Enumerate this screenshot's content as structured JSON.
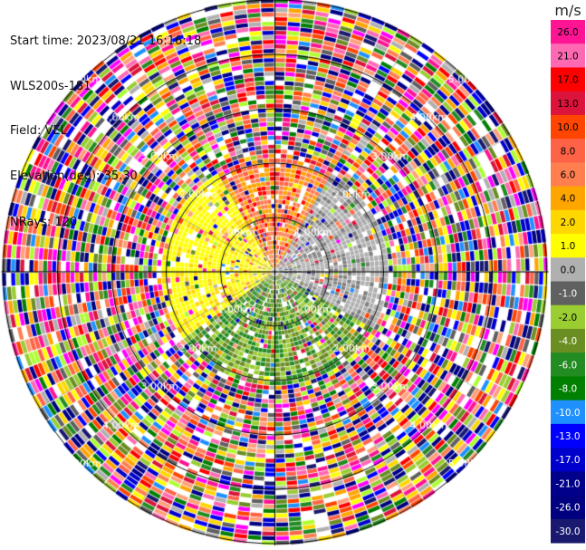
{
  "header": {
    "start_time": "Start time: 2023/08/21 16:16:18",
    "instrument": "WLS200s-181",
    "field": "Field: VEL",
    "elevation": "Elevation(deg): 35.30",
    "nrays": "NRays: 120"
  },
  "colorbar": {
    "unit": "m/s",
    "ticks": [
      "26.0",
      "21.0",
      "17.0",
      "13.0",
      "10.0",
      "8.0",
      "6.0",
      "4.0",
      "2.0",
      "1.0",
      "0.0",
      "-1.0",
      "-2.0",
      "-4.0",
      "-6.0",
      "-8.0",
      "-10.0",
      "-13.0",
      "-17.0",
      "-21.0",
      "-26.0",
      "-30.0"
    ],
    "colors": [
      "#ff1493",
      "#ff69b4",
      "#ff0000",
      "#dc143c",
      "#ff4500",
      "#ff6347",
      "#ff7f50",
      "#ffa500",
      "#ffd700",
      "#ffff00",
      "#b0b0b0",
      "#606060",
      "#9acd32",
      "#6b8e23",
      "#228b22",
      "#008000",
      "#1e90ff",
      "#0000ff",
      "#0000cd",
      "#00008b",
      "#000080",
      "#191970"
    ]
  },
  "chart_data": {
    "type": "heatmap",
    "projection": "polar PPI (plan position indicator)",
    "field": "VEL",
    "unit": "m/s",
    "nrays": 120,
    "range_rings_km": [
      1.0,
      2.0,
      3.0,
      4.0,
      5.0
    ],
    "range_ring_labels": [
      "1.00km",
      "2.00km",
      "3.00km",
      "4.00km",
      "5.00km"
    ],
    "max_range_km": 5.0,
    "color_scale_bounds": [
      -30.0,
      26.0
    ],
    "near_field": {
      "north_sector": "red/orange (about 10 to 17 m/s)",
      "west_sector": "yellow (about 2 to 4 m/s)",
      "south_sector": "green (about -4 to -8 m/s)",
      "east_sector": "grey (about 0 m/s)"
    },
    "far_field": "noisy, all colors of the scale"
  }
}
